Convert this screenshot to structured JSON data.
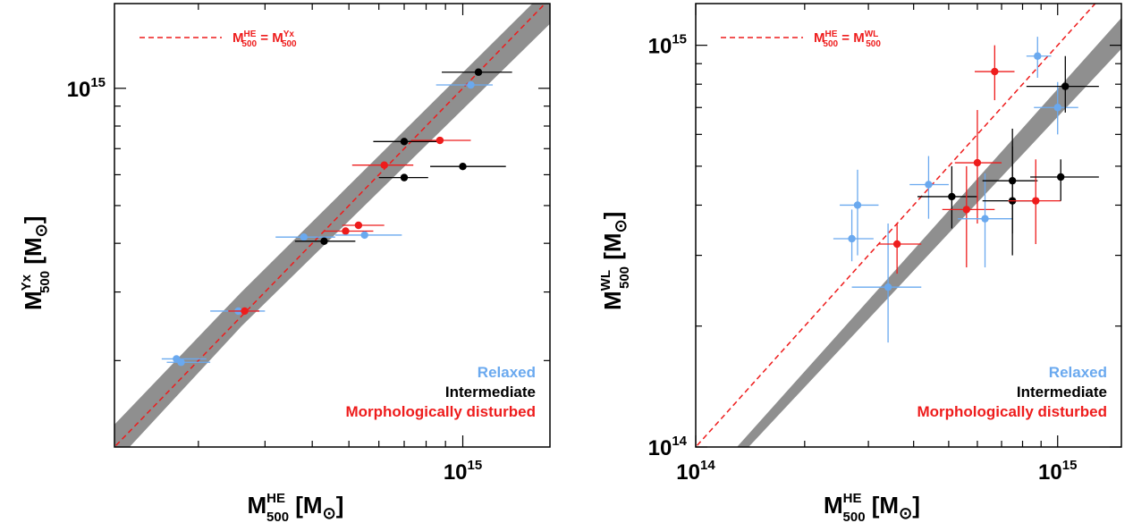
{
  "colors": {
    "relaxed": "#6aa9ef",
    "intermediate": "#000000",
    "disturbed": "#ee1c1c",
    "band": "#8f8f8f",
    "one_to_one": "#ee1c1c"
  },
  "chart_data": [
    {
      "type": "scatter",
      "log_x": true,
      "log_y": true,
      "xlim": [
        120000000000000.0,
        1700000000000000.0
      ],
      "ylim": [
        120000000000000.0,
        1650000000000000.0
      ],
      "x_major_ticks": [
        {
          "v": 1000000000000000.0,
          "label": "10",
          "sup": "15"
        }
      ],
      "y_major_ticks": [
        {
          "v": 1000000000000000.0,
          "label": "10",
          "sup": "15"
        }
      ],
      "xlabel": {
        "main": "M",
        "sup": "HE",
        "sub": "500",
        "unit": "[M",
        "sun": "⊙",
        "close": "]"
      },
      "ylabel": {
        "main": "M",
        "sup": "Yx",
        "sub": "500",
        "unit": "[M",
        "sun": "⊙",
        "close": "]"
      },
      "legend_line": {
        "lhs": "M",
        "lhs_sup": "HE",
        "lhs_sub": "500",
        "eq": "=",
        "rhs": "M",
        "rhs_sup": "Yx",
        "rhs_sub": "500"
      },
      "legend": [
        "Relaxed",
        "Intermediate",
        "Morphologically disturbed"
      ],
      "band": {
        "low": [
          [
            120000000000000.0,
            109000000000000.0
          ],
          [
            260000000000000.0,
            245000000000000.0
          ],
          [
            1720000000000000.0,
            1480000000000000.0
          ]
        ],
        "high": [
          [
            120000000000000.0,
            137000000000000.0
          ],
          [
            260000000000000.0,
            300000000000000.0
          ],
          [
            1720000000000000.0,
            1850000000000000.0
          ]
        ]
      },
      "points": [
        {
          "cls": "relaxed",
          "x": 175000000000000.0,
          "y": 202000000000000.0,
          "xlo": 160000000000000.0,
          "xhi": 210000000000000.0
        },
        {
          "cls": "relaxed",
          "x": 180000000000000.0,
          "y": 198000000000000.0,
          "xlo": 165000000000000.0,
          "xhi": 215000000000000.0
        },
        {
          "cls": "relaxed",
          "x": 255000000000000.0,
          "y": 268000000000000.0,
          "xlo": 215000000000000.0,
          "xhi": 300000000000000.0
        },
        {
          "cls": "disturbed",
          "x": 265000000000000.0,
          "y": 268000000000000.0,
          "xlo": 240000000000000.0,
          "xhi": 290000000000000.0
        },
        {
          "cls": "relaxed",
          "x": 380000000000000.0,
          "y": 415000000000000.0,
          "xlo": 320000000000000.0,
          "xhi": 460000000000000.0
        },
        {
          "cls": "intermediate",
          "x": 430000000000000.0,
          "y": 405000000000000.0,
          "xlo": 360000000000000.0,
          "xhi": 520000000000000.0
        },
        {
          "cls": "disturbed",
          "x": 490000000000000.0,
          "y": 430000000000000.0,
          "xlo": 430000000000000.0,
          "xhi": 580000000000000.0
        },
        {
          "cls": "relaxed",
          "x": 550000000000000.0,
          "y": 420000000000000.0,
          "xlo": 460000000000000.0,
          "xhi": 690000000000000.0
        },
        {
          "cls": "disturbed",
          "x": 530000000000000.0,
          "y": 445000000000000.0,
          "xlo": 480000000000000.0,
          "xhi": 620000000000000.0
        },
        {
          "cls": "disturbed",
          "x": 620000000000000.0,
          "y": 635000000000000.0,
          "xlo": 510000000000000.0,
          "xhi": 740000000000000.0
        },
        {
          "cls": "intermediate",
          "x": 700000000000000.0,
          "y": 590000000000000.0,
          "xlo": 600000000000000.0,
          "xhi": 810000000000000.0
        },
        {
          "cls": "intermediate",
          "x": 700000000000000.0,
          "y": 730000000000000.0,
          "xlo": 580000000000000.0,
          "xhi": 880000000000000.0
        },
        {
          "cls": "disturbed",
          "x": 870000000000000.0,
          "y": 735000000000000.0,
          "xlo": 730000000000000.0,
          "xhi": 1050000000000000.0
        },
        {
          "cls": "intermediate",
          "x": 1000000000000000.0,
          "y": 630000000000000.0,
          "xlo": 820000000000000.0,
          "xhi": 1300000000000000.0
        },
        {
          "cls": "relaxed",
          "x": 1050000000000000.0,
          "y": 1020000000000000.0,
          "xlo": 850000000000000.0,
          "xhi": 1200000000000000.0
        },
        {
          "cls": "intermediate",
          "x": 1100000000000000.0,
          "y": 1100000000000000.0,
          "xlo": 880000000000000.0,
          "xhi": 1350000000000000.0
        }
      ]
    },
    {
      "type": "scatter",
      "log_x": true,
      "log_y": true,
      "xlim": [
        100000000000000.0,
        1500000000000000.0
      ],
      "ylim": [
        100000000000000.0,
        1270000000000000.0
      ],
      "x_major_ticks": [
        {
          "v": 100000000000000.0,
          "label": "10",
          "sup": "14"
        },
        {
          "v": 1000000000000000.0,
          "label": "10",
          "sup": "15"
        }
      ],
      "y_major_ticks": [
        {
          "v": 100000000000000.0,
          "label": "10",
          "sup": "14"
        },
        {
          "v": 1000000000000000.0,
          "label": "10",
          "sup": "15"
        }
      ],
      "xlabel": {
        "main": "M",
        "sup": "HE",
        "sub": "500",
        "unit": "[M",
        "sun": "⊙",
        "close": "]"
      },
      "ylabel": {
        "main": "M",
        "sup": "WL",
        "sub": "500",
        "unit": "[M",
        "sun": "⊙",
        "close": "]"
      },
      "legend_line": {
        "lhs": "M",
        "lhs_sup": "HE",
        "lhs_sub": "500",
        "eq": "=",
        "rhs": "M",
        "rhs_sup": "WL",
        "rhs_sub": "500"
      },
      "legend": [
        "Relaxed",
        "Intermediate",
        "Morphologically disturbed"
      ],
      "band": {
        "low": [
          [
            140000000000000.0,
            100000000000000.0
          ],
          [
            1500000000000000.0,
            980000000000000.0
          ]
        ],
        "high": [
          [
            130000000000000.0,
            100000000000000.0
          ],
          [
            1500000000000000.0,
            1170000000000000.0
          ]
        ]
      },
      "points": [
        {
          "cls": "relaxed",
          "x": 270000000000000.0,
          "y": 330000000000000.0,
          "xlo": 240000000000000.0,
          "xhi": 310000000000000.0,
          "ylo": 290000000000000.0,
          "yhi": 390000000000000.0
        },
        {
          "cls": "relaxed",
          "x": 280000000000000.0,
          "y": 400000000000000.0,
          "xlo": 250000000000000.0,
          "xhi": 320000000000000.0,
          "ylo": 300000000000000.0,
          "yhi": 490000000000000.0
        },
        {
          "cls": "relaxed",
          "x": 340000000000000.0,
          "y": 250000000000000.0,
          "xlo": 270000000000000.0,
          "xhi": 420000000000000.0,
          "ylo": 182000000000000.0,
          "yhi": 360000000000000.0
        },
        {
          "cls": "disturbed",
          "x": 360000000000000.0,
          "y": 320000000000000.0,
          "xlo": 320000000000000.0,
          "xhi": 420000000000000.0,
          "ylo": 270000000000000.0,
          "yhi": 360000000000000.0
        },
        {
          "cls": "relaxed",
          "x": 440000000000000.0,
          "y": 450000000000000.0,
          "xlo": 390000000000000.0,
          "xhi": 500000000000000.0,
          "ylo": 370000000000000.0,
          "yhi": 530000000000000.0
        },
        {
          "cls": "intermediate",
          "x": 510000000000000.0,
          "y": 420000000000000.0,
          "xlo": 410000000000000.0,
          "xhi": 600000000000000.0,
          "ylo": 350000000000000.0,
          "yhi": 500000000000000.0
        },
        {
          "cls": "disturbed",
          "x": 560000000000000.0,
          "y": 390000000000000.0,
          "xlo": 480000000000000.0,
          "xhi": 670000000000000.0,
          "ylo": 280000000000000.0,
          "yhi": 500000000000000.0
        },
        {
          "cls": "disturbed",
          "x": 600000000000000.0,
          "y": 510000000000000.0,
          "xlo": 520000000000000.0,
          "xhi": 700000000000000.0,
          "ylo": 360000000000000.0,
          "yhi": 690000000000000.0
        },
        {
          "cls": "relaxed",
          "x": 630000000000000.0,
          "y": 370000000000000.0,
          "xlo": 530000000000000.0,
          "xhi": 750000000000000.0,
          "ylo": 280000000000000.0,
          "yhi": 480000000000000.0
        },
        {
          "cls": "disturbed",
          "x": 670000000000000.0,
          "y": 860000000000000.0,
          "xlo": 590000000000000.0,
          "xhi": 760000000000000.0,
          "ylo": 730000000000000.0,
          "yhi": 1000000000000000.0
        },
        {
          "cls": "intermediate",
          "x": 750000000000000.0,
          "y": 460000000000000.0,
          "xlo": 620000000000000.0,
          "xhi": 880000000000000.0,
          "ylo": 340000000000000.0,
          "yhi": 620000000000000.0
        },
        {
          "cls": "intermediate",
          "x": 750000000000000.0,
          "y": 410000000000000.0,
          "xlo": 620000000000000.0,
          "xhi": 880000000000000.0,
          "ylo": 300000000000000.0,
          "yhi": 560000000000000.0
        },
        {
          "cls": "disturbed",
          "x": 870000000000000.0,
          "y": 410000000000000.0,
          "xlo": 730000000000000.0,
          "xhi": 1020000000000000.0,
          "ylo": 320000000000000.0,
          "yhi": 520000000000000.0
        },
        {
          "cls": "relaxed",
          "x": 880000000000000.0,
          "y": 940000000000000.0,
          "xlo": 820000000000000.0,
          "xhi": 960000000000000.0,
          "ylo": 830000000000000.0,
          "yhi": 1050000000000000.0
        },
        {
          "cls": "relaxed",
          "x": 1000000000000000.0,
          "y": 700000000000000.0,
          "xlo": 860000000000000.0,
          "xhi": 1140000000000000.0,
          "ylo": 600000000000000.0,
          "yhi": 810000000000000.0
        },
        {
          "cls": "intermediate",
          "x": 1020000000000000.0,
          "y": 470000000000000.0,
          "xlo": 840000000000000.0,
          "xhi": 1300000000000000.0,
          "ylo": 410000000000000.0,
          "yhi": 520000000000000.0
        },
        {
          "cls": "intermediate",
          "x": 1050000000000000.0,
          "y": 790000000000000.0,
          "xlo": 820000000000000.0,
          "xhi": 1300000000000000.0,
          "ylo": 680000000000000.0,
          "yhi": 940000000000000.0
        }
      ]
    }
  ]
}
